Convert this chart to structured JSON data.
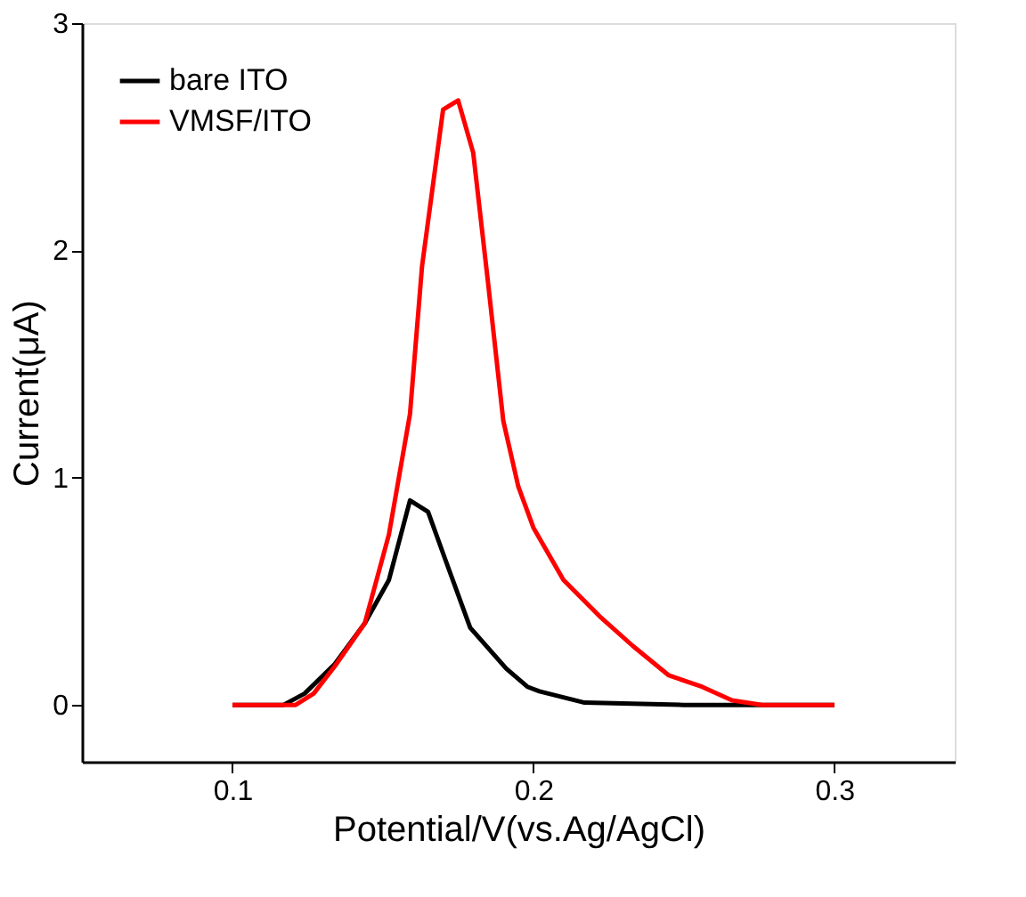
{
  "chart_data": {
    "type": "line",
    "xlabel": "Potential/V(vs.Ag/AgCl)",
    "ylabel": "Current(μA)",
    "xlim": [
      0.05,
      0.34
    ],
    "xticks": [
      0.1,
      0.2,
      0.3
    ],
    "ylim": [
      -0.25,
      3
    ],
    "yticks": [
      0,
      1,
      2,
      3
    ],
    "grid": false,
    "legend": "top left",
    "marker": "none",
    "line_style": "solid",
    "series": [
      {
        "name": "bare ITO",
        "color": "#000000",
        "x": [
          0.1,
          0.117,
          0.124,
          0.134,
          0.144,
          0.152,
          0.159,
          0.165,
          0.171,
          0.179,
          0.191,
          0.198,
          0.202,
          0.217,
          0.25,
          0.3
        ],
        "values": [
          0,
          0,
          0.05,
          0.18,
          0.36,
          0.55,
          0.9,
          0.85,
          0.63,
          0.34,
          0.16,
          0.08,
          0.06,
          0.01,
          0,
          0
        ]
      },
      {
        "name": "VMSF/ITO",
        "color": "#ff0000",
        "x": [
          0.1,
          0.121,
          0.127,
          0.134,
          0.144,
          0.152,
          0.159,
          0.163,
          0.17,
          0.175,
          0.18,
          0.185,
          0.19,
          0.195,
          0.2,
          0.21,
          0.222,
          0.233,
          0.245,
          0.256,
          0.266,
          0.276,
          0.3
        ],
        "values": [
          0,
          0,
          0.05,
          0.17,
          0.36,
          0.75,
          1.28,
          1.93,
          2.62,
          2.66,
          2.43,
          1.85,
          1.25,
          0.96,
          0.78,
          0.55,
          0.39,
          0.26,
          0.13,
          0.08,
          0.02,
          0,
          0
        ]
      }
    ]
  }
}
